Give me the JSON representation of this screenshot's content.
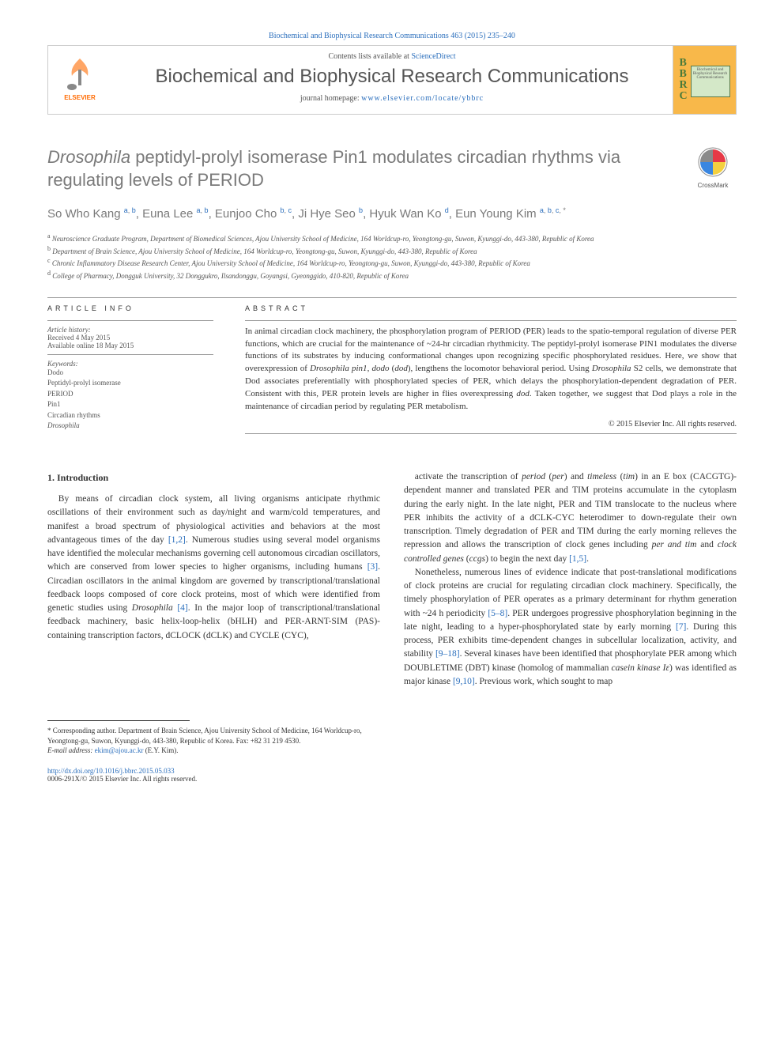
{
  "top_citation": "Biochemical and Biophysical Research Communications 463 (2015) 235–240",
  "header": {
    "contents_prefix": "Contents lists available at ",
    "contents_link": "ScienceDirect",
    "journal_name": "Biochemical and Biophysical Research Communications",
    "homepage_prefix": "journal homepage: ",
    "homepage_link": "www.elsevier.com/locate/ybbrc",
    "publisher": "ELSEVIER",
    "journal_abbrev": {
      "line1": "B",
      "line2": "B",
      "line3": "R",
      "line4": "C"
    },
    "mini_cover": "Biochemical and Biophysical Research Communications"
  },
  "crossmark_label": "CrossMark",
  "title_parts": {
    "pre": "",
    "ital1": "Drosophila",
    "mid": " peptidyl-prolyl isomerase Pin1 modulates circadian rhythms via regulating levels of PERIOD"
  },
  "authors_html": "So Who Kang <sup><a>a</a>, <a>b</a></sup>, Euna Lee <sup><a>a</a>, <a>b</a></sup>, Eunjoo Cho <sup><a>b</a>, <a>c</a></sup>, Ji Hye Seo <sup><a>b</a></sup>, Hyuk Wan Ko <sup><a>d</a></sup>, Eun Young Kim <sup><a>a</a>, <a>b</a>, <a>c</a>, *</sup>",
  "affiliations": {
    "a": "Neuroscience Graduate Program, Department of Biomedical Sciences, Ajou University School of Medicine, 164 Worldcup-ro, Yeongtong-gu, Suwon, Kyunggi-do, 443-380, Republic of Korea",
    "b": "Department of Brain Science, Ajou University School of Medicine, 164 Worldcup-ro, Yeongtong-gu, Suwon, Kyunggi-do, 443-380, Republic of Korea",
    "c": "Chronic Inflammatory Disease Research Center, Ajou University School of Medicine, 164 Worldcup-ro, Yeongtong-gu, Suwon, Kyunggi-do, 443-380, Republic of Korea",
    "d": "College of Pharmacy, Dongguk University, 32 Donggukro, Ilsandonggu, Goyangsi, Gyeonggido, 410-820, Republic of Korea"
  },
  "info": {
    "label": "ARTICLE INFO",
    "history_label": "Article history:",
    "received": "Received 4 May 2015",
    "online": "Available online 18 May 2015",
    "keywords_label": "Keywords:",
    "keywords": [
      "Dodo",
      "Peptidyl-prolyl isomerase",
      "PERIOD",
      "Pin1",
      "Circadian rhythms",
      "Drosophila"
    ]
  },
  "abstract": {
    "label": "ABSTRACT",
    "text_html": "In animal circadian clock machinery, the phosphorylation program of PERIOD (PER) leads to the spatio-temporal regulation of diverse PER functions, which are crucial for the maintenance of ~24-hr circadian rhythmicity. The peptidyl-prolyl isomerase PIN1 modulates the diverse functions of its substrates by inducing conformational changes upon recognizing specific phosphorylated residues. Here, we show that overexpression of <i>Drosophila pin1</i>, <i>dodo</i> (<i>dod</i>), lengthens the locomotor behavioral period. Using <i>Drosophila</i> S2 cells, we demonstrate that Dod associates preferentially with phosphorylated species of PER, which delays the phosphorylation-dependent degradation of PER. Consistent with this, PER protein levels are higher in flies overexpressing <i>dod</i>. Taken together, we suggest that Dod plays a role in the maintenance of circadian period by regulating PER metabolism.",
    "copyright": "© 2015 Elsevier Inc. All rights reserved."
  },
  "body": {
    "heading": "1. Introduction",
    "para1_html": "By means of circadian clock system, all living organisms anticipate rhythmic oscillations of their environment such as day/night and warm/cold temperatures, and manifest a broad spectrum of physiological activities and behaviors at the most advantageous times of the day <a>[1,2]</a>. Numerous studies using several model organisms have identified the molecular mechanisms governing cell autonomous circadian oscillators, which are conserved from lower species to higher organisms, including humans <a>[3]</a>. Circadian oscillators in the animal kingdom are governed by transcriptional/translational feedback loops composed of core clock proteins, most of which were identified from genetic studies using <i>Drosophila</i> <a>[4]</a>. In the major loop of transcriptional/translational feedback machinery, basic helix-loop-helix (bHLH) and PER-ARNT-SIM (PAS)-containing transcription factors, dCLOCK (dCLK) and CYCLE (CYC),",
    "para2_html": "activate the transcription of <i>period</i> (<i>per</i>) and <i>timeless</i> (<i>tim</i>) in an E box (CACGTG)-dependent manner and translated PER and TIM proteins accumulate in the cytoplasm during the early night. In the late night, PER and TIM translocate to the nucleus where PER inhibits the activity of a dCLK-CYC heterodimer to down-regulate their own transcription. Timely degradation of PER and TIM during the early morning relieves the repression and allows the transcription of clock genes including <i>per and tim</i> and <i>clock controlled genes</i> (<i>ccgs</i>) to begin the next day <a>[1,5]</a>.",
    "para3_html": "Nonetheless, numerous lines of evidence indicate that post-translational modifications of clock proteins are crucial for regulating circadian clock machinery. Specifically, the timely phosphorylation of PER operates as a primary determinant for rhythm generation with ~24 h periodicity <a>[5–8]</a>. PER undergoes progressive phosphorylation beginning in the late night, leading to a hyper-phosphorylated state by early morning <a>[7]</a>. During this process, PER exhibits time-dependent changes in subcellular localization, activity, and stability <a>[9–18]</a>. Several kinases have been identified that phosphorylate PER among which DOUBLETIME (DBT) kinase (homolog of mammalian <i>casein kinase Iε</i>) was identified as major kinase <a>[9,10]</a>. Previous work, which sought to map"
  },
  "footer": {
    "corresponding": "* Corresponding author. Department of Brain Science, Ajou University School of Medicine, 164 Worldcup-ro, Yeongtong-gu, Suwon, Kyunggi-do, 443-380, Republic of Korea. Fax: +82 31 219 4530.",
    "email_label": "E-mail address: ",
    "email": "ekim@ajou.ac.kr",
    "email_suffix": " (E.Y. Kim).",
    "doi": "http://dx.doi.org/10.1016/j.bbrc.2015.05.033",
    "issn": "0006-291X/© 2015 Elsevier Inc. All rights reserved."
  },
  "colors": {
    "link": "#2a6ebc",
    "gray_text": "#7a7a7a",
    "border": "#cccccc",
    "elsevier_orange": "#ff6a00",
    "bbrc_bg": "#f8b84a",
    "bbrc_green": "#4a7a3a"
  }
}
